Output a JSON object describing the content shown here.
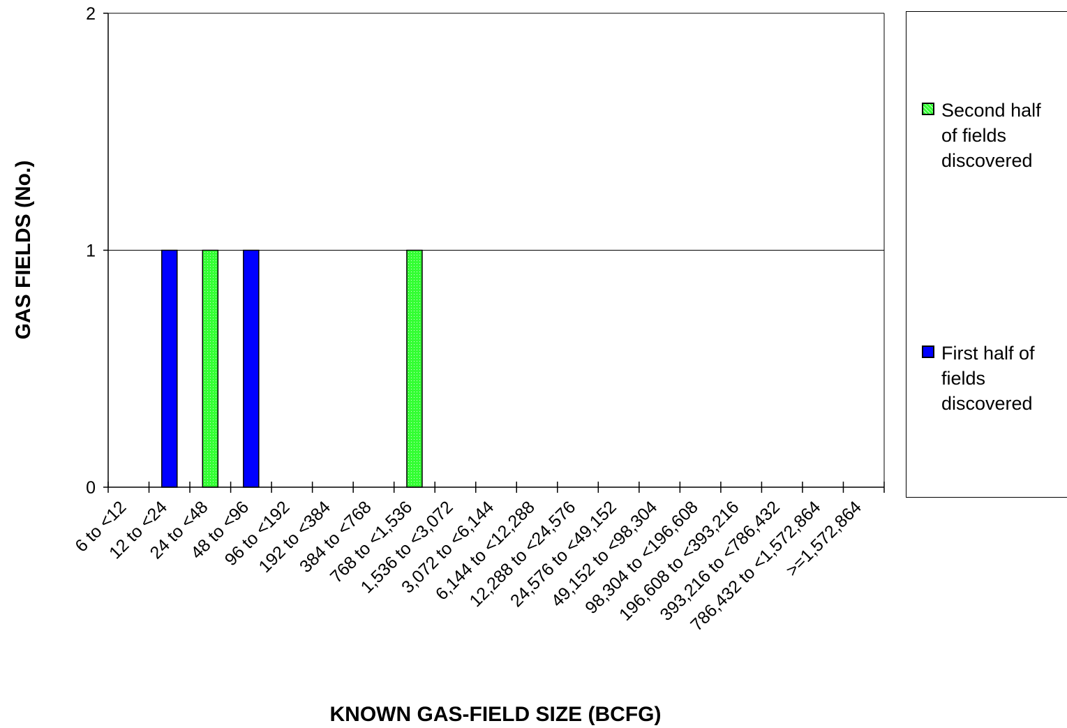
{
  "chart_data": {
    "type": "bar",
    "stacked": true,
    "categories": [
      "6 to <12",
      "12 to <24",
      "24 to <48",
      "48 to <96",
      "96 to <192",
      "192 to <384",
      "384 to <768",
      "768 to <1,536",
      "1,536 to <3,072",
      "3,072 to <6,144",
      "6,144 to <12,288",
      "12,288 to <24,576",
      "24,576 to <49,152",
      "49,152 to <98,304",
      "98,304 to <196,608",
      "196,608 to <393,216",
      "393,216 to <786,432",
      "786,432 to <1,572,864",
      ">=1,572,864"
    ],
    "series": [
      {
        "name": "First half of fields discovered",
        "color": "#0000ff",
        "values": [
          0,
          1,
          0,
          1,
          0,
          0,
          0,
          0,
          0,
          0,
          0,
          0,
          0,
          0,
          0,
          0,
          0,
          0,
          0
        ]
      },
      {
        "name": "Second half of fields discovered",
        "color": "#33ff33",
        "values": [
          0,
          0,
          1,
          0,
          0,
          0,
          0,
          1,
          0,
          0,
          0,
          0,
          0,
          0,
          0,
          0,
          0,
          0,
          0
        ]
      }
    ],
    "xlabel": "KNOWN GAS-FIELD SIZE (BCFG)",
    "ylabel": "GAS FIELDS (No.)",
    "ylim": [
      0,
      2
    ],
    "yticks": [
      "0",
      "1",
      "2"
    ],
    "grid": true,
    "legend_position": "right"
  },
  "legend": {
    "items": [
      {
        "label_lines": [
          "Second half",
          "of fields",
          "discovered"
        ],
        "color": "#33ff33"
      },
      {
        "label_lines": [
          "First half of",
          "fields",
          "discovered"
        ],
        "color": "#0000ff"
      }
    ]
  }
}
